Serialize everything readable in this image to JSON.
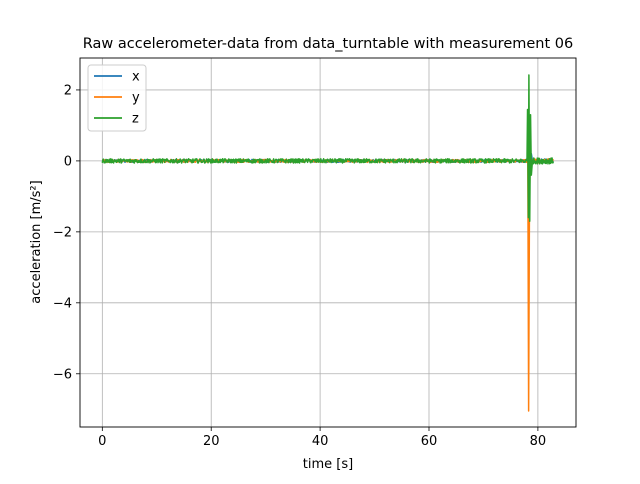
{
  "chart_data": {
    "type": "line",
    "title": "Raw accelerometer-data from data_turntable with measurement 06",
    "xlabel": "time [s]",
    "ylabel": "acceleration [m/s²]",
    "xlim": [
      -4.1,
      87
    ],
    "ylim": [
      -7.5,
      2.9
    ],
    "xticks": [
      0,
      20,
      40,
      60,
      80
    ],
    "yticks": [
      2,
      0,
      -2,
      -4,
      -6
    ],
    "xtick_labels": [
      "0",
      "20",
      "40",
      "60",
      "80"
    ],
    "ytick_labels": [
      "2",
      "0",
      "−2",
      "−4",
      "−6"
    ],
    "grid": true,
    "legend_position": "upper-left",
    "series": [
      {
        "name": "x",
        "color": "#1f77b4",
        "baseline_noise": 0.04,
        "x_range": [
          0,
          82.8
        ],
        "spike": [
          [
            78.0,
            0.0
          ],
          [
            78.2,
            0.45
          ],
          [
            78.35,
            -0.9
          ],
          [
            78.5,
            0.6
          ],
          [
            78.65,
            -0.3
          ],
          [
            78.8,
            0.2
          ],
          [
            79.0,
            0.0
          ]
        ]
      },
      {
        "name": "y",
        "color": "#ff7f0e",
        "baseline_noise": 0.04,
        "x_range": [
          0,
          82.8
        ],
        "spike": [
          [
            78.0,
            0.0
          ],
          [
            78.15,
            0.1
          ],
          [
            78.3,
            -7.05
          ],
          [
            78.45,
            -1.2
          ],
          [
            78.6,
            0.3
          ],
          [
            78.8,
            -0.1
          ],
          [
            79.0,
            0.0
          ]
        ]
      },
      {
        "name": "z",
        "color": "#2ca02c",
        "baseline_noise": 0.06,
        "x_range": [
          0,
          82.8
        ],
        "spike": [
          [
            78.0,
            0.0
          ],
          [
            78.1,
            1.45
          ],
          [
            78.25,
            -1.6
          ],
          [
            78.35,
            2.42
          ],
          [
            78.5,
            -1.7
          ],
          [
            78.65,
            1.3
          ],
          [
            78.8,
            -0.4
          ],
          [
            79.0,
            0.0
          ]
        ]
      }
    ]
  }
}
